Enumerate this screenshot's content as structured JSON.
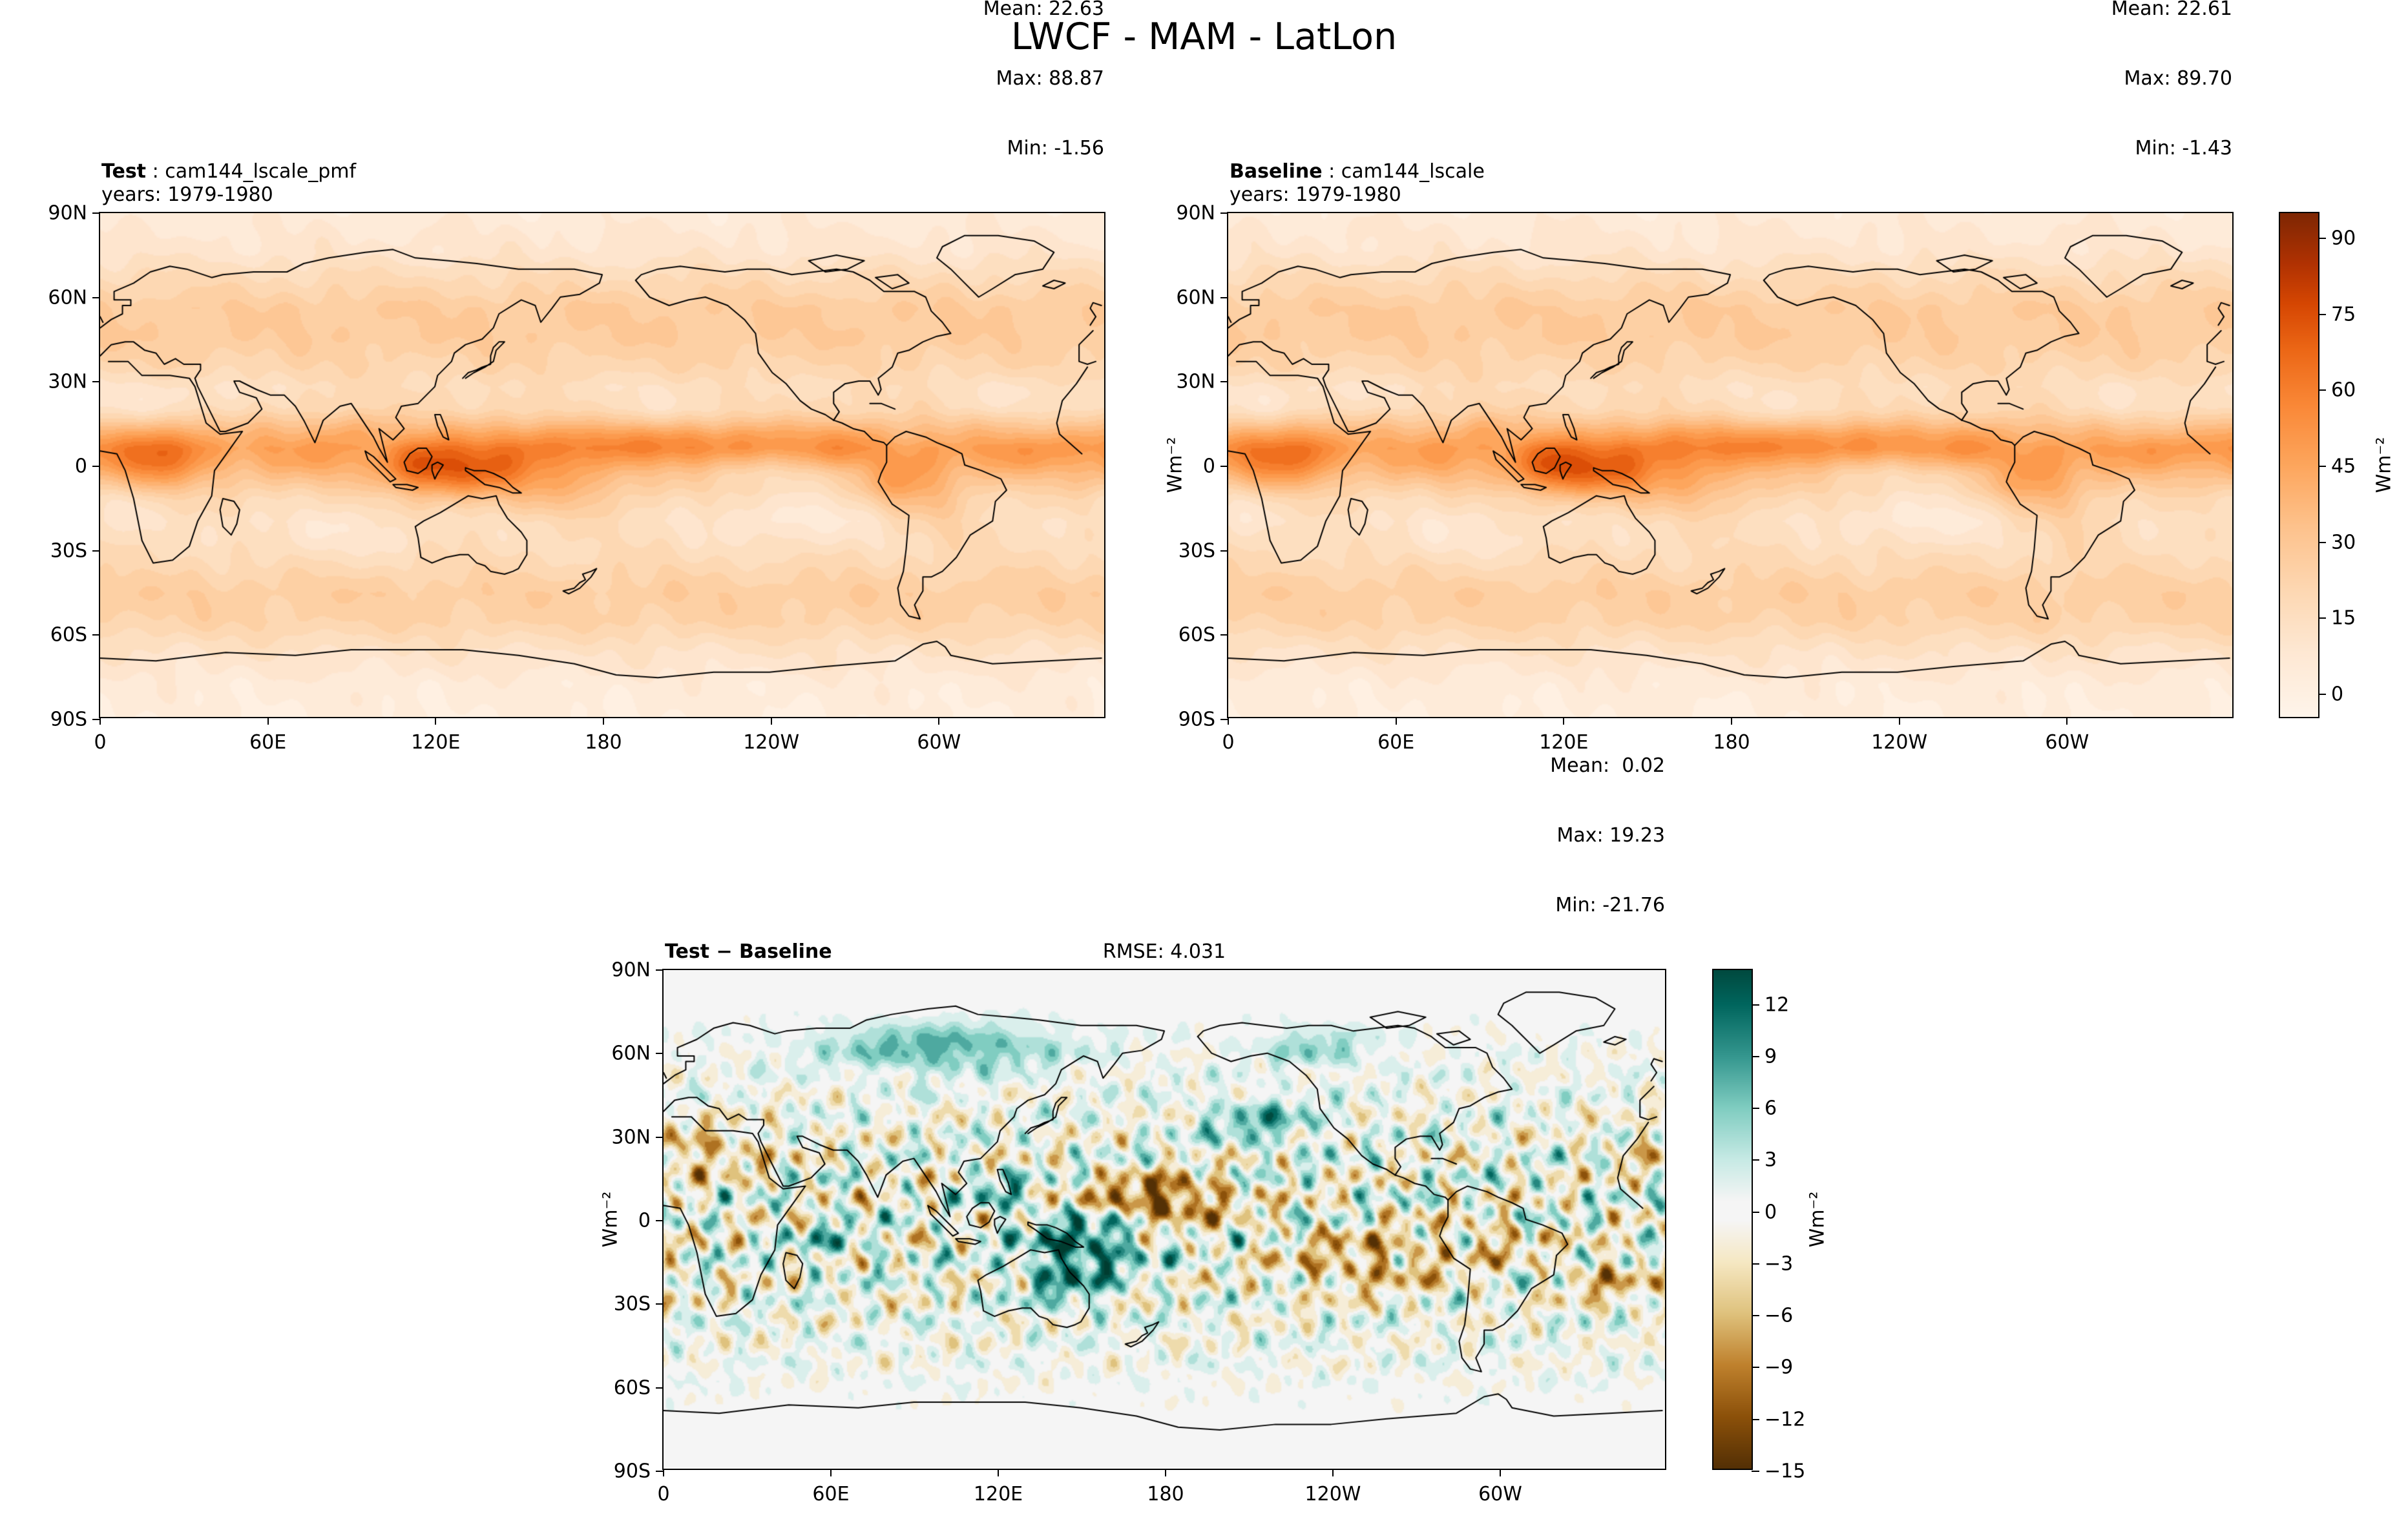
{
  "title": "LWCF - MAM - LatLon",
  "units_label": "Wm⁻²",
  "panels": {
    "test": {
      "label": "Test",
      "separator": " : ",
      "dataset": "cam144_lscale_pmf",
      "years": "years: 1979-1980",
      "stats_lines": [
        "Mean: 22.63",
        "Max: 88.87",
        "Min: -1.56"
      ]
    },
    "baseline": {
      "label": "Baseline",
      "separator": " : ",
      "dataset": "cam144_lscale",
      "years": "years: 1979-1980",
      "stats_lines": [
        "Mean: 22.61",
        "Max: 89.70",
        "Min: -1.43"
      ]
    },
    "diff": {
      "label": "Test − Baseline",
      "rmse": "RMSE: 4.031",
      "stats_lines": [
        "Mean:  0.02",
        "Max: 19.23",
        "Min: -21.76"
      ]
    }
  },
  "axes": {
    "lat_tick_labels": [
      "90N",
      "60N",
      "30N",
      "0",
      "30S",
      "60S",
      "90S"
    ],
    "lon_tick_labels": [
      "0",
      "60E",
      "120E",
      "180",
      "120W",
      "60W"
    ]
  },
  "colorbars": {
    "main": {
      "label": "Wm⁻²",
      "colormap": "Oranges",
      "tick_labels": [
        "90",
        "75",
        "60",
        "45",
        "30",
        "15",
        "0"
      ],
      "tick_values": [
        90,
        75,
        60,
        45,
        30,
        15,
        0
      ],
      "vmin": -5,
      "vmax": 95
    },
    "diff": {
      "label": "Wm⁻²",
      "colormap": "BrBG",
      "tick_labels": [
        "12",
        "9",
        "6",
        "3",
        "0",
        "−3",
        "−6",
        "−9",
        "−12",
        "−15"
      ],
      "tick_values": [
        12,
        9,
        6,
        3,
        0,
        -3,
        -6,
        -9,
        -12,
        -15
      ],
      "vmin": -15,
      "vmax": 14
    }
  },
  "chart_data": [
    {
      "type": "heatmap",
      "name": "test",
      "title": "Test : cam144_lscale_pmf",
      "subtitle": "years: 1979-1980",
      "units": "Wm⁻²",
      "stats": {
        "mean": 22.63,
        "max": 88.87,
        "min": -1.56
      },
      "x_axis": {
        "tick_labels": [
          "0",
          "60E",
          "120E",
          "180",
          "120W",
          "60W"
        ],
        "range_deg": [
          0,
          360
        ]
      },
      "y_axis": {
        "tick_labels": [
          "90N",
          "60N",
          "30N",
          "0",
          "30S",
          "60S",
          "90S"
        ],
        "range_deg": [
          -90,
          90
        ]
      },
      "colorbar": {
        "colormap": "Oranges",
        "ticks": [
          0,
          15,
          30,
          45,
          60,
          75,
          90
        ],
        "vmin": -5,
        "vmax": 95
      }
    },
    {
      "type": "heatmap",
      "name": "baseline",
      "title": "Baseline : cam144_lscale",
      "subtitle": "years: 1979-1980",
      "units": "Wm⁻²",
      "stats": {
        "mean": 22.61,
        "max": 89.7,
        "min": -1.43
      },
      "x_axis": {
        "tick_labels": [
          "0",
          "60E",
          "120E",
          "180",
          "120W",
          "60W"
        ],
        "range_deg": [
          0,
          360
        ]
      },
      "y_axis": {
        "tick_labels": [
          "90N",
          "60N",
          "30N",
          "0",
          "30S",
          "60S",
          "90S"
        ],
        "range_deg": [
          -90,
          90
        ]
      },
      "colorbar": {
        "colormap": "Oranges",
        "ticks": [
          0,
          15,
          30,
          45,
          60,
          75,
          90
        ],
        "vmin": -5,
        "vmax": 95
      }
    },
    {
      "type": "heatmap",
      "name": "difference",
      "title": "Test − Baseline",
      "rmse": 4.031,
      "units": "Wm⁻²",
      "stats": {
        "mean": 0.02,
        "max": 19.23,
        "min": -21.76
      },
      "x_axis": {
        "tick_labels": [
          "0",
          "60E",
          "120E",
          "180",
          "120W",
          "60W"
        ],
        "range_deg": [
          0,
          360
        ]
      },
      "y_axis": {
        "tick_labels": [
          "90N",
          "60N",
          "30N",
          "0",
          "30S",
          "60S",
          "90S"
        ],
        "range_deg": [
          -90,
          90
        ]
      },
      "colorbar": {
        "colormap": "BrBG",
        "ticks": [
          -15,
          -12,
          -9,
          -6,
          -3,
          0,
          3,
          6,
          9,
          12
        ],
        "vmin": -15,
        "vmax": 14
      }
    }
  ]
}
